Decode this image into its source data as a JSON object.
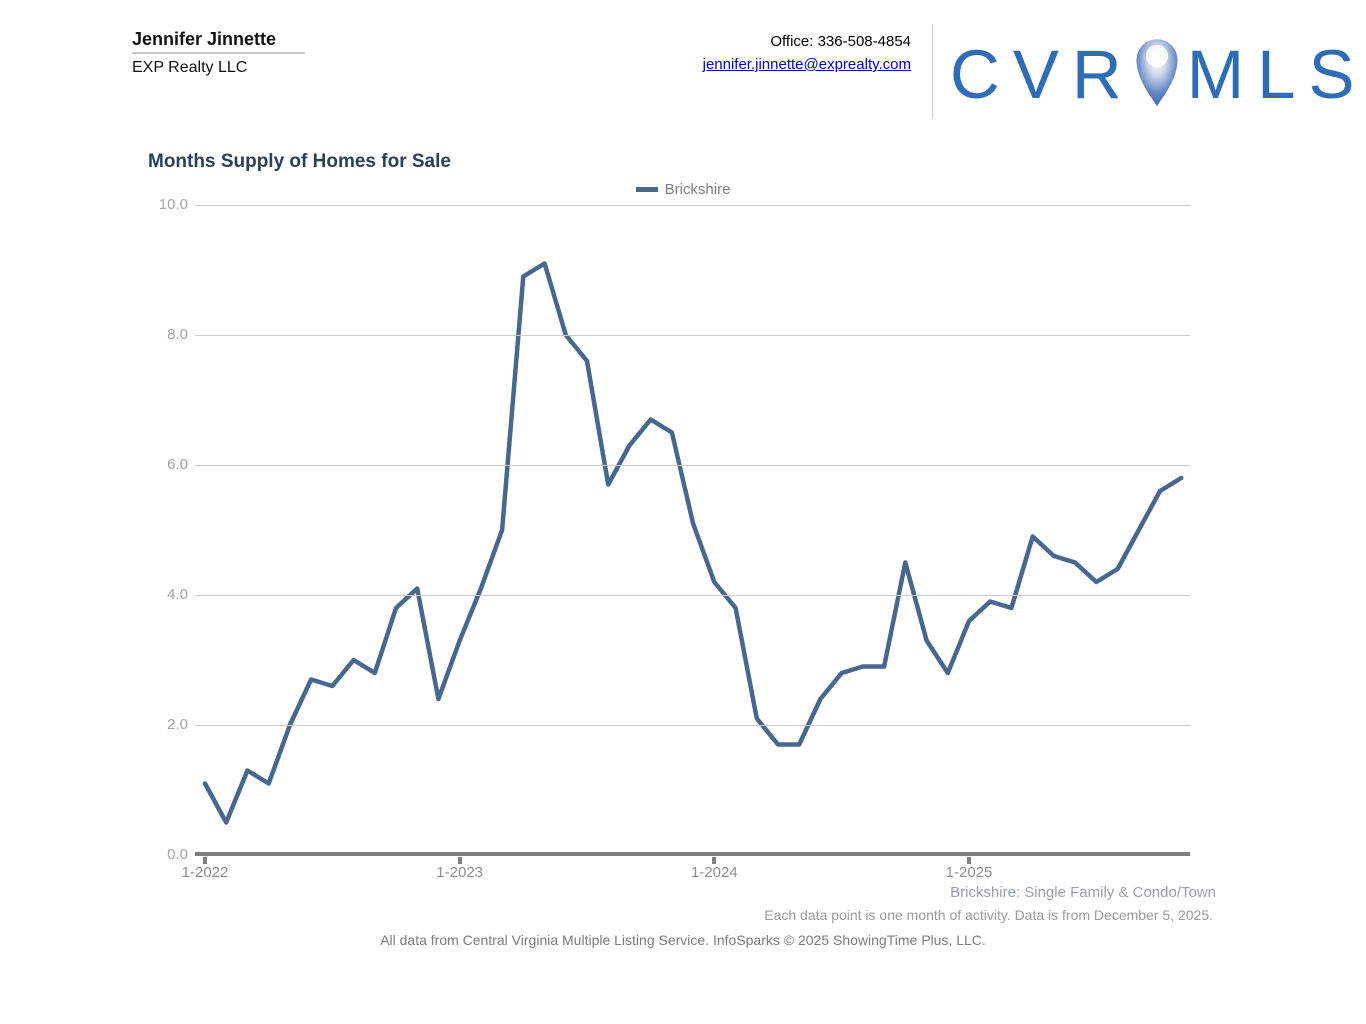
{
  "header": {
    "agent_name": "Jennifer Jinnette",
    "company": "EXP Realty LLC",
    "office_phone": "Office: 336-508-4854",
    "email": "jennifer.jinnette@exprealty.com",
    "logo_prefix": "CVR",
    "logo_suffix": "MLS",
    "logo_color": "#2e6cb5",
    "email_color": "#0000cc"
  },
  "chart": {
    "title": "Months Supply of Homes for Sale",
    "legend": {
      "label": "Brickshire",
      "swatch_color": "#48678f"
    },
    "y_ticks": [
      "10.0",
      "8.0",
      "6.0",
      "4.0",
      "2.0",
      "0.0"
    ],
    "x_ticks": [
      "1-2022",
      "1-2023",
      "1-2024",
      "1-2025"
    ]
  },
  "chart_data": {
    "type": "line",
    "title": "Months Supply of Homes for Sale",
    "xlabel": "",
    "ylabel": "",
    "ylim": [
      0,
      10
    ],
    "grid": "horizontal",
    "legend_position": "top-center",
    "series": [
      {
        "name": "Brickshire",
        "color": "#48678f",
        "x": [
          "1-2022",
          "2-2022",
          "3-2022",
          "4-2022",
          "5-2022",
          "6-2022",
          "7-2022",
          "8-2022",
          "9-2022",
          "10-2022",
          "11-2022",
          "12-2022",
          "1-2023",
          "2-2023",
          "3-2023",
          "4-2023",
          "5-2023",
          "6-2023",
          "7-2023",
          "8-2023",
          "9-2023",
          "10-2023",
          "11-2023",
          "12-2023",
          "1-2024",
          "2-2024",
          "3-2024",
          "4-2024",
          "5-2024",
          "6-2024",
          "7-2024",
          "8-2024",
          "9-2024",
          "10-2024",
          "11-2024",
          "12-2024",
          "1-2025",
          "2-2025",
          "3-2025",
          "4-2025",
          "5-2025",
          "6-2025",
          "7-2025",
          "8-2025",
          "9-2025",
          "10-2025",
          "11-2025"
        ],
        "values": [
          1.1,
          0.5,
          1.3,
          1.1,
          2.0,
          2.7,
          2.6,
          3.0,
          2.8,
          3.8,
          4.1,
          2.4,
          3.3,
          4.1,
          5.0,
          8.9,
          9.1,
          8.0,
          7.6,
          5.7,
          6.3,
          6.7,
          6.5,
          5.1,
          4.2,
          3.8,
          2.1,
          1.7,
          1.7,
          2.4,
          2.8,
          2.9,
          2.9,
          4.5,
          3.3,
          2.8,
          3.6,
          3.9,
          3.8,
          4.9,
          4.6,
          4.5,
          4.2,
          4.4,
          5.0,
          5.6,
          5.8
        ]
      }
    ]
  },
  "footer": {
    "area_line": "Brickshire: Single Family & Condo/Town",
    "note_line": "Each data point is one month of activity. Data is from December 5, 2025.",
    "source_line": "All data from Central Virginia Multiple Listing Service. InfoSparks © 2025 ShowingTime Plus, LLC."
  }
}
